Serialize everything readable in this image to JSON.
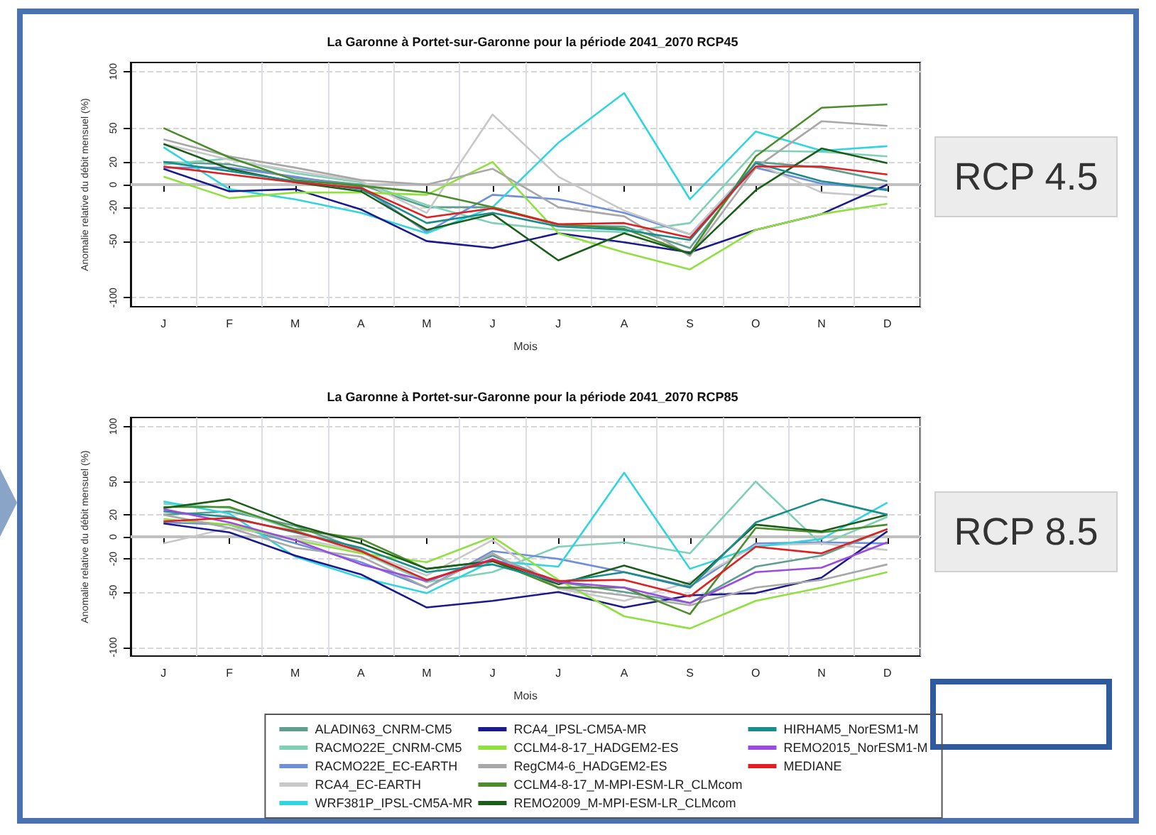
{
  "chart_data": [
    {
      "type": "line",
      "title": "La Garonne à Portet-sur-Garonne pour la période 2041_2070 RCP45",
      "xlabel": "Mois",
      "ylabel": "Anomalie relative du débit mensuel (%)",
      "categories": [
        "J",
        "F",
        "M",
        "A",
        "M",
        "J",
        "J",
        "A",
        "S",
        "O",
        "N",
        "D"
      ],
      "ylim": [
        -108,
        108
      ],
      "yticks": [
        -100,
        -50,
        -20,
        0,
        20,
        50,
        100
      ],
      "grid": true,
      "legend": false,
      "ref_lines": [
        {
          "axis": "y",
          "value": 0,
          "label": null,
          "color": "#c0c0c0"
        }
      ],
      "annotations": [
        "RCP 4.5"
      ],
      "series": [
        {
          "color": "#5f9e8f",
          "values": [
            20,
            18,
            6,
            0,
            -20,
            -20,
            -36,
            -37,
            -56,
            20,
            15,
            3
          ]
        },
        {
          "color": "#7fd1b5",
          "values": [
            18,
            23,
            10,
            2,
            -18,
            -34,
            -40,
            -42,
            -34,
            30,
            29,
            25
          ]
        },
        {
          "color": "#6f8fd8",
          "values": [
            15,
            15,
            7,
            -2,
            -42,
            -9,
            -13,
            -25,
            -44,
            15,
            1,
            -4
          ]
        },
        {
          "color": "#c8c8c8",
          "values": [
            36,
            22,
            12,
            3,
            -25,
            62,
            7,
            -23,
            -44,
            19,
            -7,
            -11
          ]
        },
        {
          "color": "#30d5e0",
          "values": [
            33,
            -4,
            -13,
            -25,
            -43,
            -20,
            37,
            81,
            -13,
            47,
            30,
            34
          ]
        },
        {
          "color": "#1a1a8c",
          "values": [
            14,
            -6,
            -4,
            -22,
            -50,
            -56,
            -43,
            -51,
            -60,
            -40,
            -26,
            0
          ]
        },
        {
          "color": "#90e040",
          "values": [
            7,
            -12,
            -7,
            -7,
            -9,
            20,
            -43,
            -60,
            -75,
            -40,
            -26,
            -17
          ]
        },
        {
          "color": "#a8a8a8",
          "values": [
            40,
            25,
            15,
            4,
            0,
            14,
            -20,
            -28,
            -63,
            15,
            56,
            52
          ]
        },
        {
          "color": "#4c8c2c",
          "values": [
            50,
            24,
            4,
            -1,
            -7,
            -20,
            -35,
            -39,
            -61,
            25,
            68,
            71
          ]
        },
        {
          "color": "#1a5e1a",
          "values": [
            36,
            14,
            2,
            -6,
            -40,
            -26,
            -67,
            -43,
            -61,
            -5,
            32,
            19
          ]
        },
        {
          "color": "#1a8c8c",
          "values": [
            20,
            12,
            3,
            -4,
            -34,
            -25,
            -37,
            -40,
            -49,
            19,
            3,
            -5
          ]
        },
        {
          "color": "#e02020",
          "values": [
            16,
            9,
            2,
            -3,
            -29,
            -21,
            -35,
            -34,
            -47,
            16,
            16,
            9
          ]
        }
      ]
    },
    {
      "type": "line",
      "title": "La Garonne à Portet-sur-Garonne pour la période 2041_2070 RCP85",
      "xlabel": "Mois",
      "ylabel": "Anomalie relative du débit mensuel (%)",
      "categories": [
        "J",
        "F",
        "M",
        "A",
        "M",
        "J",
        "J",
        "A",
        "S",
        "O",
        "N",
        "D"
      ],
      "ylim": [
        -108,
        108
      ],
      "yticks": [
        -100,
        -50,
        -20,
        0,
        20,
        50,
        100
      ],
      "grid": true,
      "legend": "bottom",
      "ref_lines": [
        {
          "axis": "y",
          "value": 0,
          "label": null,
          "color": "#c0c0c0"
        }
      ],
      "annotations": [
        "RCP 8.5"
      ],
      "series": [
        {
          "name": "ALADIN63_CNRM-CM5",
          "color": "#5f9e8f",
          "values": [
            20,
            23,
            10,
            -12,
            -41,
            -17,
            -41,
            -50,
            -60,
            -27,
            -17,
            7
          ]
        },
        {
          "name": "RACMO22E_CNRM-CM5",
          "color": "#7fd1b5",
          "values": [
            30,
            26,
            6,
            -14,
            -41,
            -32,
            -9,
            -5,
            -15,
            50,
            -7,
            18
          ]
        },
        {
          "name": "RACMO22E_EC-EARTH",
          "color": "#6f8fd8",
          "values": [
            13,
            11,
            -6,
            -23,
            -46,
            -13,
            -20,
            -32,
            -45,
            -6,
            -5,
            -6
          ]
        },
        {
          "name": "RCA4_EC-EARTH",
          "color": "#c8c8c8",
          "values": [
            -6,
            8,
            -1,
            -13,
            -35,
            -3,
            -47,
            -58,
            -41,
            -8,
            -6,
            -12
          ]
        },
        {
          "name": "WRF381P_IPSL-CM5A-MR",
          "color": "#30d5e0",
          "values": [
            32,
            21,
            -18,
            -37,
            -51,
            -22,
            -27,
            58,
            -29,
            -9,
            -2,
            31
          ]
        },
        {
          "name": "RCA4_IPSL-CM5A-MR",
          "color": "#1a1a8c",
          "values": [
            12,
            4,
            -17,
            -34,
            -64,
            -58,
            -50,
            -64,
            -53,
            -51,
            -37,
            5
          ]
        },
        {
          "name": "CCLM4-8-17_HADGEM2-ES",
          "color": "#90e040",
          "values": [
            16,
            11,
            -3,
            -15,
            -23,
            0,
            -39,
            -72,
            -83,
            -58,
            -46,
            -32
          ]
        },
        {
          "name": "RegCM4-6_HADGEM2-ES",
          "color": "#a8a8a8",
          "values": [
            20,
            8,
            -10,
            -18,
            -46,
            -15,
            -46,
            -53,
            -62,
            -46,
            -39,
            -25
          ]
        },
        {
          "name": "CCLM4-8-17_M-MPI-ESM-LR_CLMcom",
          "color": "#4c8c2c",
          "values": [
            27,
            27,
            7,
            -2,
            -29,
            -22,
            -46,
            -46,
            -70,
            8,
            4,
            11
          ]
        },
        {
          "name": "REMO2009_M-MPI-ESM-LR_CLMcom",
          "color": "#1a5e1a",
          "values": [
            26,
            34,
            11,
            -6,
            -29,
            -22,
            -43,
            -26,
            -43,
            11,
            5,
            20
          ]
        },
        {
          "name": "HIRHAM5_NorESM1-M",
          "color": "#1a8c8c",
          "values": [
            23,
            18,
            4,
            -10,
            -32,
            -25,
            -41,
            -32,
            -46,
            13,
            34,
            20
          ]
        },
        {
          "name": "REMO2015_NorESM1-M",
          "color": "#9b4ce0",
          "values": [
            25,
            13,
            -3,
            -25,
            -40,
            -20,
            -41,
            -46,
            -60,
            -32,
            -28,
            -5
          ]
        },
        {
          "name": "MEDIANE",
          "color": "#e02020",
          "values": [
            14,
            17,
            5,
            -13,
            -39,
            -21,
            -40,
            -39,
            -54,
            -9,
            -15,
            7
          ]
        }
      ]
    }
  ]
}
